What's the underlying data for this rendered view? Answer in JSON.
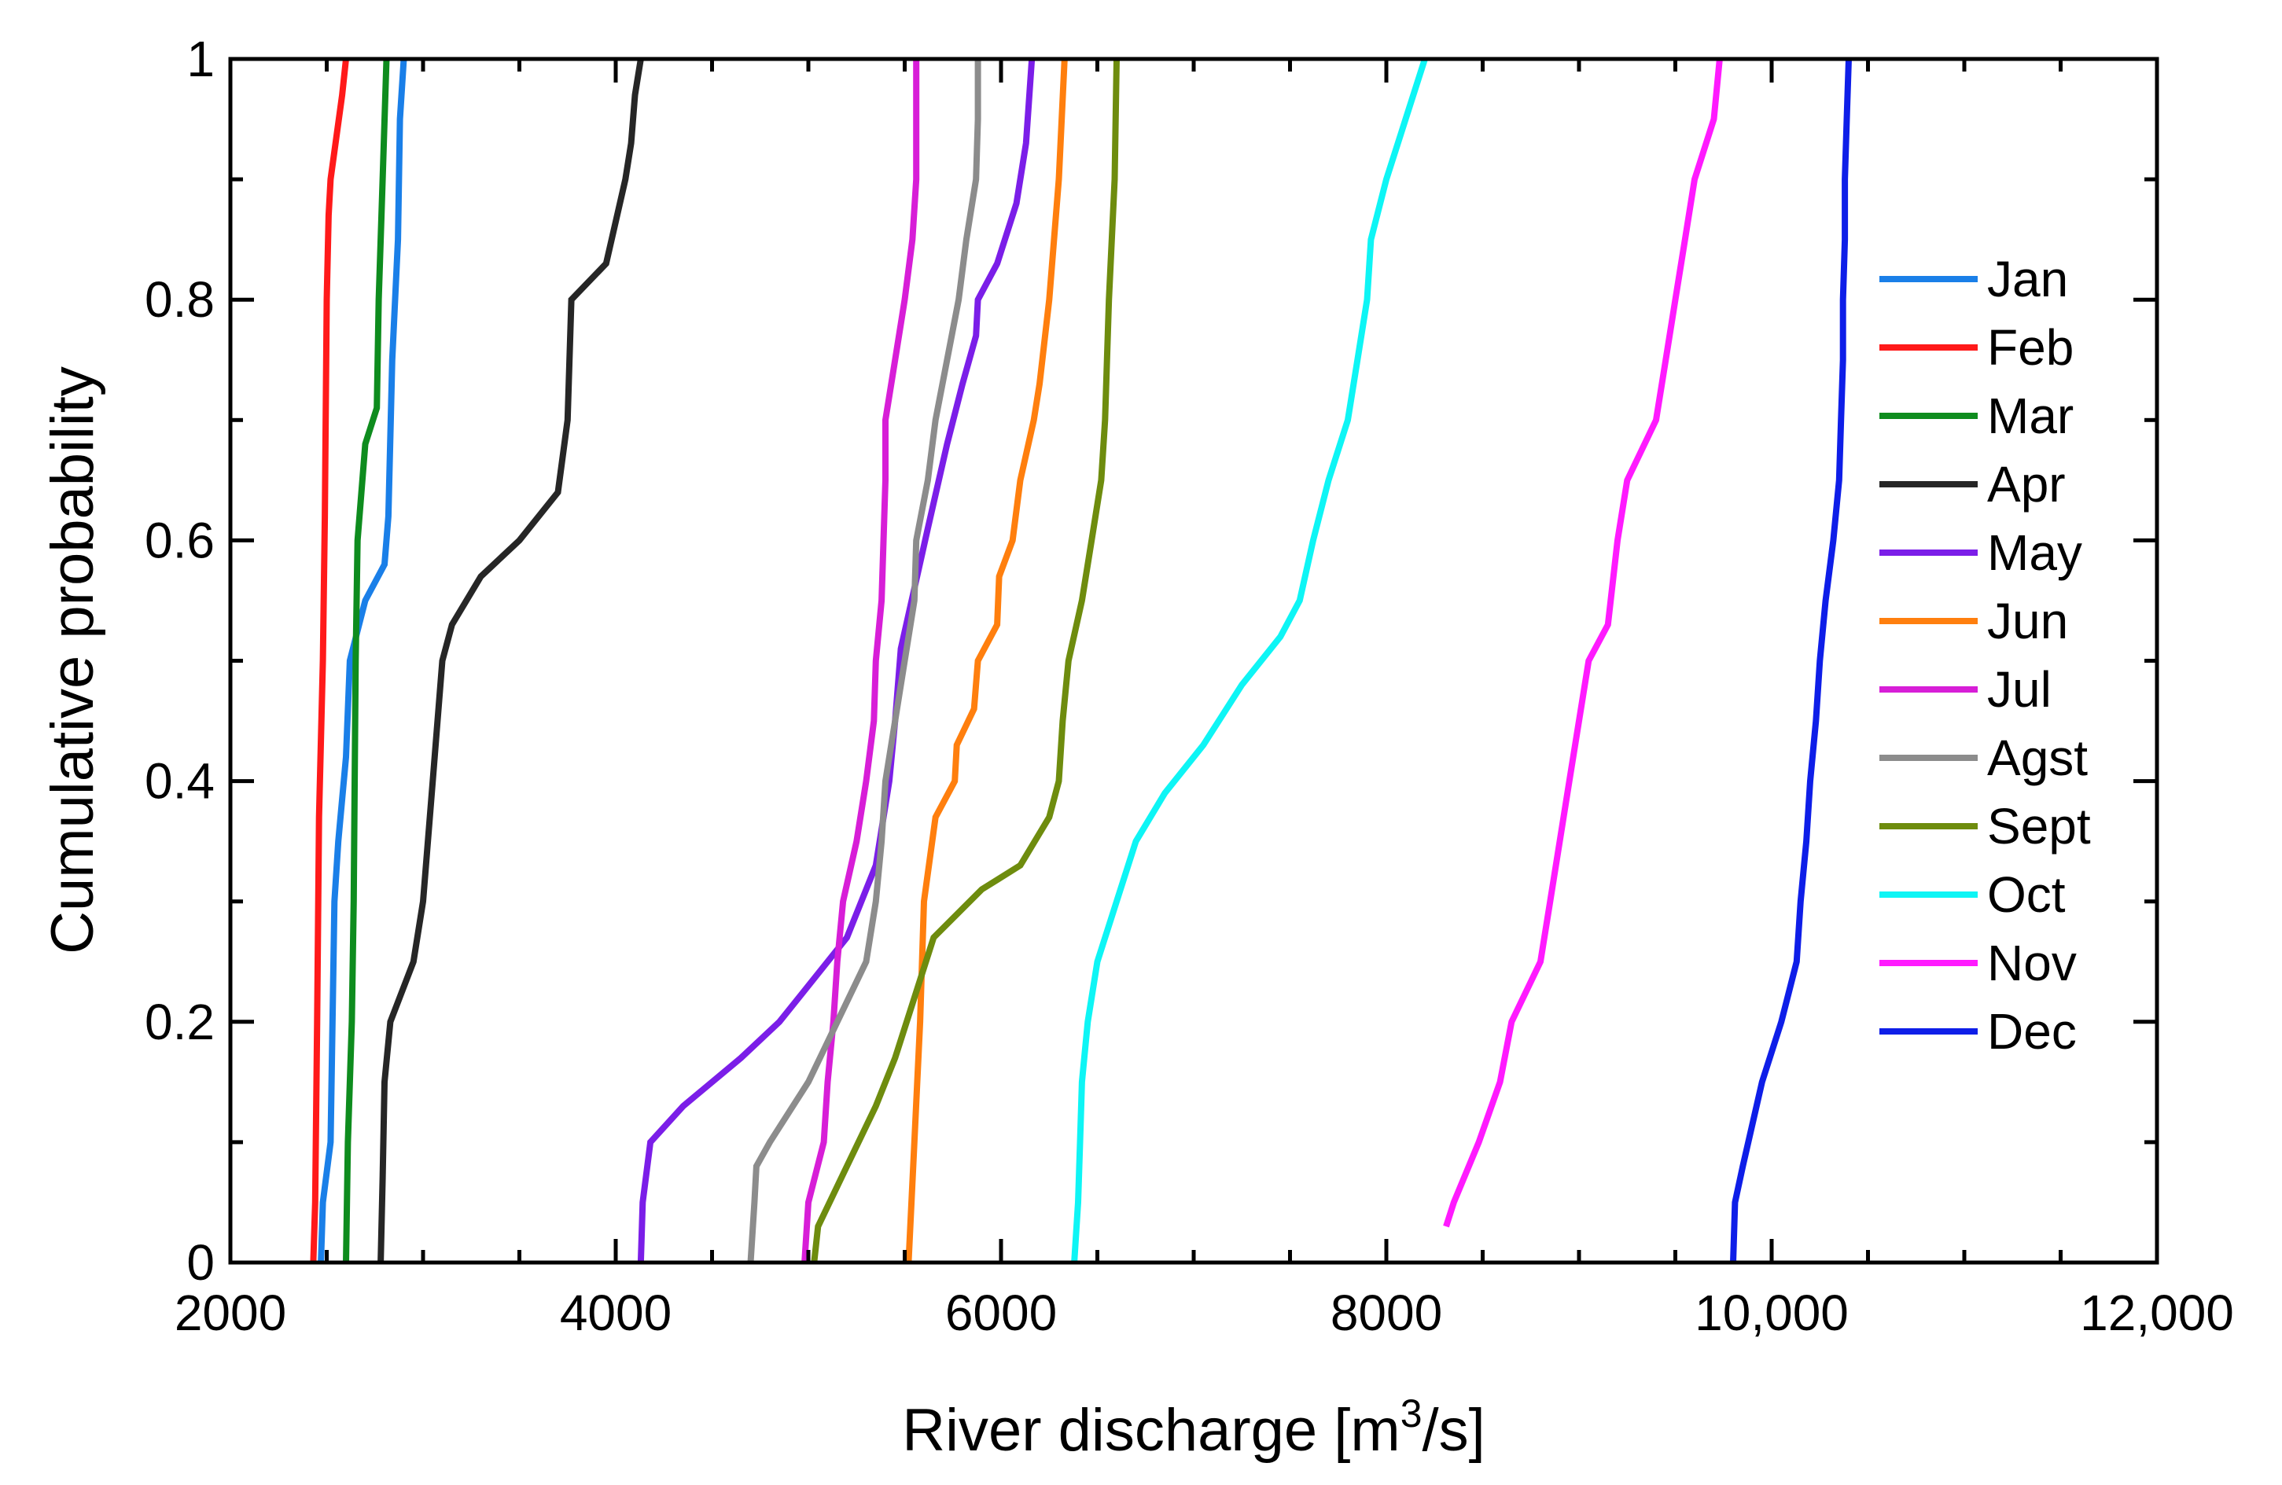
{
  "chart_data": {
    "type": "line",
    "title": "",
    "xlabel_main": "River discharge [m",
    "xlabel_sup": "3",
    "xlabel_end": "/s]",
    "ylabel": "Cumulative probability",
    "xlim": [
      2000,
      12000
    ],
    "ylim": [
      0,
      1
    ],
    "xticks": [
      {
        "value": 2000,
        "label": "2000"
      },
      {
        "value": 4000,
        "label": "4000"
      },
      {
        "value": 6000,
        "label": "6000"
      },
      {
        "value": 8000,
        "label": "8000"
      },
      {
        "value": 10000,
        "label": "10,000"
      },
      {
        "value": 12000,
        "label": "12,000"
      }
    ],
    "yticks": [
      {
        "value": 0,
        "label": "0"
      },
      {
        "value": 0.2,
        "label": "0.2"
      },
      {
        "value": 0.4,
        "label": "0.4"
      },
      {
        "value": 0.6,
        "label": "0.6"
      },
      {
        "value": 0.8,
        "label": "0.8"
      },
      {
        "value": 1,
        "label": "1"
      }
    ],
    "grid": false,
    "legend_position": "right",
    "series": [
      {
        "name": "Jan",
        "color": "#1a7fe8",
        "points": [
          [
            2470,
            0
          ],
          [
            2480,
            0.05
          ],
          [
            2520,
            0.1
          ],
          [
            2540,
            0.3
          ],
          [
            2560,
            0.35
          ],
          [
            2600,
            0.42
          ],
          [
            2620,
            0.5
          ],
          [
            2700,
            0.55
          ],
          [
            2800,
            0.58
          ],
          [
            2820,
            0.62
          ],
          [
            2840,
            0.75
          ],
          [
            2870,
            0.85
          ],
          [
            2880,
            0.95
          ],
          [
            2900,
            1.0
          ]
        ]
      },
      {
        "name": "Feb",
        "color": "#ff1a1a",
        "points": [
          [
            2430,
            0
          ],
          [
            2440,
            0.05
          ],
          [
            2450,
            0.2
          ],
          [
            2460,
            0.37
          ],
          [
            2480,
            0.5
          ],
          [
            2490,
            0.62
          ],
          [
            2500,
            0.8
          ],
          [
            2510,
            0.87
          ],
          [
            2520,
            0.9
          ],
          [
            2580,
            0.97
          ],
          [
            2600,
            1.0
          ]
        ]
      },
      {
        "name": "Mar",
        "color": "#0e8c1e",
        "points": [
          [
            2600,
            0
          ],
          [
            2610,
            0.1
          ],
          [
            2630,
            0.2
          ],
          [
            2640,
            0.3
          ],
          [
            2650,
            0.5
          ],
          [
            2660,
            0.6
          ],
          [
            2700,
            0.68
          ],
          [
            2760,
            0.71
          ],
          [
            2770,
            0.8
          ],
          [
            2790,
            0.9
          ],
          [
            2810,
            1.0
          ]
        ]
      },
      {
        "name": "Apr",
        "color": "#262626",
        "points": [
          [
            2780,
            0
          ],
          [
            2790,
            0.07
          ],
          [
            2800,
            0.15
          ],
          [
            2830,
            0.2
          ],
          [
            2950,
            0.25
          ],
          [
            3000,
            0.3
          ],
          [
            3050,
            0.4
          ],
          [
            3100,
            0.5
          ],
          [
            3150,
            0.53
          ],
          [
            3300,
            0.57
          ],
          [
            3500,
            0.6
          ],
          [
            3700,
            0.64
          ],
          [
            3750,
            0.7
          ],
          [
            3770,
            0.8
          ],
          [
            3950,
            0.83
          ],
          [
            4050,
            0.9
          ],
          [
            4080,
            0.93
          ],
          [
            4100,
            0.97
          ],
          [
            4130,
            1.0
          ]
        ]
      },
      {
        "name": "May",
        "color": "#7b1ee8",
        "points": [
          [
            4130,
            0
          ],
          [
            4140,
            0.05
          ],
          [
            4180,
            0.1
          ],
          [
            4350,
            0.13
          ],
          [
            4650,
            0.17
          ],
          [
            4850,
            0.2
          ],
          [
            5000,
            0.23
          ],
          [
            5200,
            0.27
          ],
          [
            5350,
            0.33
          ],
          [
            5420,
            0.4
          ],
          [
            5450,
            0.45
          ],
          [
            5480,
            0.51
          ],
          [
            5550,
            0.56
          ],
          [
            5620,
            0.61
          ],
          [
            5720,
            0.68
          ],
          [
            5800,
            0.73
          ],
          [
            5870,
            0.77
          ],
          [
            5880,
            0.8
          ],
          [
            5980,
            0.83
          ],
          [
            6080,
            0.88
          ],
          [
            6130,
            0.93
          ],
          [
            6160,
            1.0
          ]
        ]
      },
      {
        "name": "Jun",
        "color": "#ff7f0e",
        "points": [
          [
            5520,
            0
          ],
          [
            5550,
            0.1
          ],
          [
            5580,
            0.2
          ],
          [
            5600,
            0.3
          ],
          [
            5660,
            0.37
          ],
          [
            5760,
            0.4
          ],
          [
            5770,
            0.43
          ],
          [
            5860,
            0.46
          ],
          [
            5880,
            0.5
          ],
          [
            5980,
            0.53
          ],
          [
            5990,
            0.57
          ],
          [
            6060,
            0.6
          ],
          [
            6100,
            0.65
          ],
          [
            6170,
            0.7
          ],
          [
            6200,
            0.73
          ],
          [
            6250,
            0.8
          ],
          [
            6300,
            0.9
          ],
          [
            6330,
            1.0
          ]
        ]
      },
      {
        "name": "Jul",
        "color": "#d71ed7",
        "points": [
          [
            4980,
            0
          ],
          [
            5000,
            0.05
          ],
          [
            5080,
            0.1
          ],
          [
            5100,
            0.15
          ],
          [
            5130,
            0.2
          ],
          [
            5150,
            0.25
          ],
          [
            5180,
            0.3
          ],
          [
            5250,
            0.35
          ],
          [
            5300,
            0.4
          ],
          [
            5340,
            0.45
          ],
          [
            5350,
            0.5
          ],
          [
            5380,
            0.55
          ],
          [
            5400,
            0.65
          ],
          [
            5400,
            0.7
          ],
          [
            5450,
            0.75
          ],
          [
            5500,
            0.8
          ],
          [
            5540,
            0.85
          ],
          [
            5560,
            0.9
          ],
          [
            5560,
            1.0
          ]
        ]
      },
      {
        "name": "Agst",
        "color": "#8c8c8c",
        "points": [
          [
            4700,
            0
          ],
          [
            4720,
            0.05
          ],
          [
            4730,
            0.08
          ],
          [
            4800,
            0.1
          ],
          [
            5000,
            0.15
          ],
          [
            5150,
            0.2
          ],
          [
            5300,
            0.25
          ],
          [
            5350,
            0.3
          ],
          [
            5380,
            0.35
          ],
          [
            5400,
            0.4
          ],
          [
            5450,
            0.45
          ],
          [
            5500,
            0.5
          ],
          [
            5550,
            0.55
          ],
          [
            5560,
            0.6
          ],
          [
            5620,
            0.65
          ],
          [
            5660,
            0.7
          ],
          [
            5720,
            0.75
          ],
          [
            5780,
            0.8
          ],
          [
            5820,
            0.85
          ],
          [
            5870,
            0.9
          ],
          [
            5880,
            0.95
          ],
          [
            5880,
            1.0
          ]
        ]
      },
      {
        "name": "Sept",
        "color": "#6e8c0e",
        "points": [
          [
            5030,
            0
          ],
          [
            5050,
            0.03
          ],
          [
            5200,
            0.08
          ],
          [
            5350,
            0.13
          ],
          [
            5450,
            0.17
          ],
          [
            5550,
            0.22
          ],
          [
            5650,
            0.27
          ],
          [
            5900,
            0.31
          ],
          [
            6100,
            0.33
          ],
          [
            6250,
            0.37
          ],
          [
            6300,
            0.4
          ],
          [
            6320,
            0.45
          ],
          [
            6350,
            0.5
          ],
          [
            6420,
            0.55
          ],
          [
            6470,
            0.6
          ],
          [
            6520,
            0.65
          ],
          [
            6540,
            0.7
          ],
          [
            6560,
            0.8
          ],
          [
            6590,
            0.9
          ],
          [
            6600,
            1.0
          ]
        ]
      },
      {
        "name": "Oct",
        "color": "#0ef5f5",
        "points": [
          [
            6380,
            0
          ],
          [
            6400,
            0.05
          ],
          [
            6410,
            0.1
          ],
          [
            6420,
            0.15
          ],
          [
            6450,
            0.2
          ],
          [
            6500,
            0.25
          ],
          [
            6600,
            0.3
          ],
          [
            6700,
            0.35
          ],
          [
            6850,
            0.39
          ],
          [
            7050,
            0.43
          ],
          [
            7250,
            0.48
          ],
          [
            7450,
            0.52
          ],
          [
            7550,
            0.55
          ],
          [
            7620,
            0.6
          ],
          [
            7700,
            0.65
          ],
          [
            7800,
            0.7
          ],
          [
            7850,
            0.75
          ],
          [
            7900,
            0.8
          ],
          [
            7920,
            0.85
          ],
          [
            8000,
            0.9
          ],
          [
            8100,
            0.95
          ],
          [
            8200,
            1.0
          ]
        ]
      },
      {
        "name": "Nov",
        "color": "#ff1aff",
        "points": [
          [
            8310,
            0.03
          ],
          [
            8350,
            0.05
          ],
          [
            8480,
            0.1
          ],
          [
            8590,
            0.15
          ],
          [
            8650,
            0.2
          ],
          [
            8800,
            0.25
          ],
          [
            8850,
            0.3
          ],
          [
            8900,
            0.35
          ],
          [
            8950,
            0.4
          ],
          [
            9000,
            0.45
          ],
          [
            9050,
            0.5
          ],
          [
            9150,
            0.53
          ],
          [
            9200,
            0.6
          ],
          [
            9250,
            0.65
          ],
          [
            9400,
            0.7
          ],
          [
            9450,
            0.75
          ],
          [
            9500,
            0.8
          ],
          [
            9550,
            0.85
          ],
          [
            9600,
            0.9
          ],
          [
            9700,
            0.95
          ],
          [
            9730,
            1.0
          ]
        ]
      },
      {
        "name": "Dec",
        "color": "#0e1ee8",
        "points": [
          [
            9800,
            0
          ],
          [
            9810,
            0.05
          ],
          [
            9850,
            0.08
          ],
          [
            9950,
            0.15
          ],
          [
            10050,
            0.2
          ],
          [
            10130,
            0.25
          ],
          [
            10150,
            0.3
          ],
          [
            10180,
            0.35
          ],
          [
            10200,
            0.4
          ],
          [
            10230,
            0.45
          ],
          [
            10250,
            0.5
          ],
          [
            10280,
            0.55
          ],
          [
            10320,
            0.6
          ],
          [
            10350,
            0.65
          ],
          [
            10360,
            0.7
          ],
          [
            10370,
            0.75
          ],
          [
            10370,
            0.8
          ],
          [
            10380,
            0.85
          ],
          [
            10380,
            0.9
          ],
          [
            10390,
            0.95
          ],
          [
            10400,
            1.0
          ]
        ]
      }
    ]
  }
}
